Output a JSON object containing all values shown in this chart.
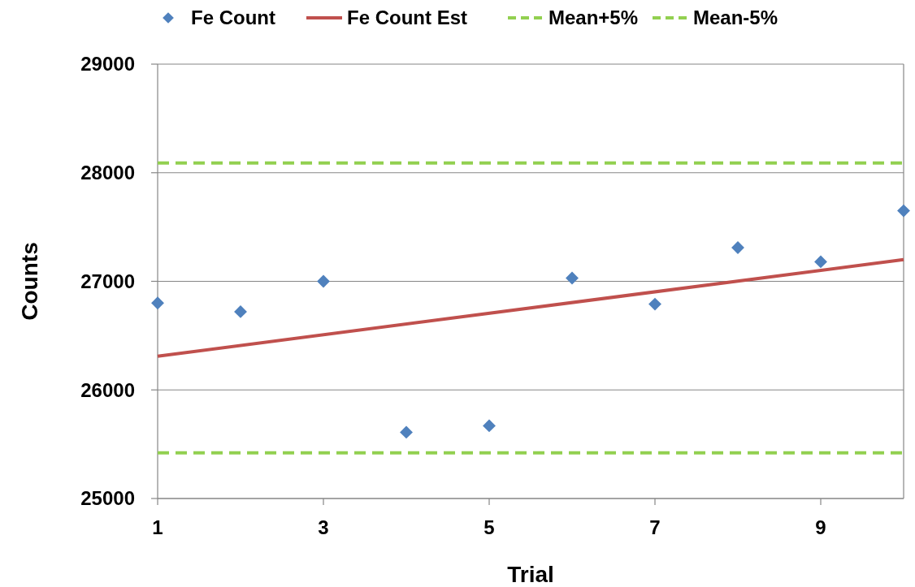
{
  "chart_data": {
    "type": "scatter",
    "xlabel": "Trial",
    "ylabel": "Counts",
    "xlim": [
      1,
      10
    ],
    "xticks": [
      1,
      3,
      5,
      7,
      9
    ],
    "ylim": [
      25000,
      29000
    ],
    "yticks": [
      25000,
      26000,
      27000,
      28000,
      29000
    ],
    "grid": "y",
    "legend": "top",
    "series": [
      {
        "name": "Fe Count",
        "marker": "diamond",
        "color": "#4f81bd",
        "x": [
          1,
          2,
          3,
          4,
          5,
          6,
          7,
          8,
          9,
          10
        ],
        "values": [
          26800,
          26720,
          27000,
          25610,
          25670,
          27030,
          26790,
          27310,
          27180,
          27650
        ]
      },
      {
        "name": "Fe Count Est",
        "type": "line",
        "marker": "none",
        "line_style": "solid",
        "color": "#c0504d",
        "x": [
          1,
          10
        ],
        "values": [
          26310,
          27200
        ]
      },
      {
        "name": "Mean+5%",
        "type": "line",
        "marker": "none",
        "line_style": "dashed",
        "color": "#92d050",
        "x": [
          1,
          10
        ],
        "values": [
          28090,
          28090
        ]
      },
      {
        "name": "Mean-5%",
        "type": "line",
        "marker": "none",
        "line_style": "dashed",
        "color": "#92d050",
        "x": [
          1,
          10
        ],
        "values": [
          25420,
          25420
        ]
      }
    ]
  }
}
